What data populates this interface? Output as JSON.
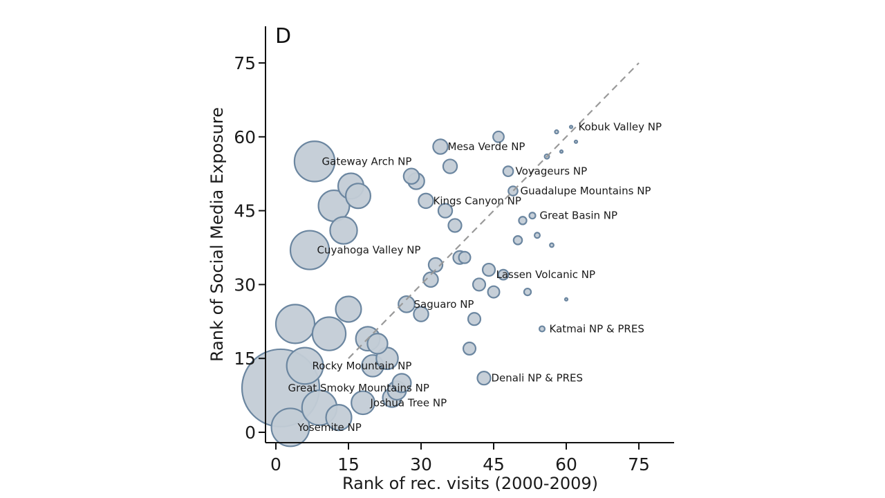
{
  "chart_data": {
    "type": "scatter",
    "panel_letter": "D",
    "xlabel": "Rank of rec. visits (2000-2009)",
    "ylabel": "Rank of Social Media Exposure",
    "xlim": [
      -2,
      82
    ],
    "ylim": [
      -2,
      83
    ],
    "xticks": [
      0,
      15,
      30,
      45,
      60,
      75
    ],
    "yticks": [
      0,
      15,
      30,
      45,
      60,
      75
    ],
    "grid": false,
    "reference_line": {
      "style": "dashed",
      "from": [
        15,
        15
      ],
      "to": [
        75,
        75
      ],
      "color": "#999999"
    },
    "colors": {
      "bubble_fill": "#c3ccd6",
      "bubble_stroke": "#6b86a0",
      "axis": "#111111"
    },
    "series": [
      {
        "points": [
          {
            "x": 1,
            "y": 9,
            "size": 1.0
          },
          {
            "x": 3,
            "y": 1,
            "size": 0.49
          },
          {
            "x": 4,
            "y": 22,
            "size": 0.5
          },
          {
            "x": 6,
            "y": 13.5,
            "size": 0.47
          },
          {
            "x": 7,
            "y": 37,
            "size": 0.5
          },
          {
            "x": 8,
            "y": 55,
            "size": 0.52
          },
          {
            "x": 9,
            "y": 5,
            "size": 0.45
          },
          {
            "x": 11,
            "y": 20,
            "size": 0.43
          },
          {
            "x": 12,
            "y": 46,
            "size": 0.4
          },
          {
            "x": 13,
            "y": 3,
            "size": 0.33
          },
          {
            "x": 14,
            "y": 41,
            "size": 0.35
          },
          {
            "x": 15.5,
            "y": 50,
            "size": 0.33
          },
          {
            "x": 15,
            "y": 25,
            "size": 0.33
          },
          {
            "x": 17,
            "y": 48,
            "size": 0.32
          },
          {
            "x": 18,
            "y": 6,
            "size": 0.3
          },
          {
            "x": 19,
            "y": 19,
            "size": 0.31
          },
          {
            "x": 20,
            "y": 13.5,
            "size": 0.28
          },
          {
            "x": 21,
            "y": 18,
            "size": 0.26
          },
          {
            "x": 23,
            "y": 15,
            "size": 0.28
          },
          {
            "x": 24,
            "y": 7,
            "size": 0.24
          },
          {
            "x": 25,
            "y": 8.5,
            "size": 0.24
          },
          {
            "x": 26,
            "y": 10,
            "size": 0.24
          },
          {
            "x": 27,
            "y": 26,
            "size": 0.21
          },
          {
            "x": 28,
            "y": 52,
            "size": 0.2
          },
          {
            "x": 29,
            "y": 51,
            "size": 0.21
          },
          {
            "x": 30,
            "y": 24,
            "size": 0.19
          },
          {
            "x": 31,
            "y": 47,
            "size": 0.19
          },
          {
            "x": 32,
            "y": 31,
            "size": 0.19
          },
          {
            "x": 33,
            "y": 34,
            "size": 0.18
          },
          {
            "x": 34,
            "y": 58,
            "size": 0.19
          },
          {
            "x": 35,
            "y": 45,
            "size": 0.18
          },
          {
            "x": 36,
            "y": 54,
            "size": 0.18
          },
          {
            "x": 37,
            "y": 42,
            "size": 0.17
          },
          {
            "x": 38,
            "y": 35.5,
            "size": 0.17
          },
          {
            "x": 39,
            "y": 35.5,
            "size": 0.15
          },
          {
            "x": 40,
            "y": 17,
            "size": 0.16
          },
          {
            "x": 41,
            "y": 23,
            "size": 0.16
          },
          {
            "x": 42,
            "y": 30,
            "size": 0.16
          },
          {
            "x": 43,
            "y": 11,
            "size": 0.17
          },
          {
            "x": 44,
            "y": 33,
            "size": 0.16
          },
          {
            "x": 45,
            "y": 28.5,
            "size": 0.15
          },
          {
            "x": 46,
            "y": 60,
            "size": 0.14
          },
          {
            "x": 47,
            "y": 32,
            "size": 0.13
          },
          {
            "x": 48,
            "y": 53,
            "size": 0.13
          },
          {
            "x": 49,
            "y": 49,
            "size": 0.12
          },
          {
            "x": 50,
            "y": 39,
            "size": 0.11
          },
          {
            "x": 51,
            "y": 43,
            "size": 0.1
          },
          {
            "x": 52,
            "y": 28.5,
            "size": 0.09
          },
          {
            "x": 53,
            "y": 44,
            "size": 0.08
          },
          {
            "x": 54,
            "y": 40,
            "size": 0.07
          },
          {
            "x": 55,
            "y": 21,
            "size": 0.07
          },
          {
            "x": 56,
            "y": 56,
            "size": 0.06
          },
          {
            "x": 57,
            "y": 38,
            "size": 0.05
          },
          {
            "x": 58,
            "y": 61,
            "size": 0.045
          },
          {
            "x": 59,
            "y": 57,
            "size": 0.035
          },
          {
            "x": 60,
            "y": 27,
            "size": 0.03
          },
          {
            "x": 61,
            "y": 62,
            "size": 0.025
          },
          {
            "x": 62,
            "y": 59,
            "size": 0.025
          }
        ]
      }
    ],
    "annotations": [
      {
        "text": "Kobuk Valley NP",
        "x": 62.5,
        "y": 62
      },
      {
        "text": "Mesa Verde NP",
        "x": 35.5,
        "y": 58
      },
      {
        "text": "Gateway Arch NP",
        "x": 9.5,
        "y": 55
      },
      {
        "text": "Voyageurs NP",
        "x": 49.5,
        "y": 53
      },
      {
        "text": "Guadalupe Mountains NP",
        "x": 50.5,
        "y": 49
      },
      {
        "text": "Kings Canyon NP",
        "x": 32.5,
        "y": 47
      },
      {
        "text": "Great Basin NP",
        "x": 54.5,
        "y": 44
      },
      {
        "text": "Cuyahoga Valley NP",
        "x": 8.5,
        "y": 37
      },
      {
        "text": "Lassen Volcanic NP",
        "x": 45.5,
        "y": 32
      },
      {
        "text": "Saguaro NP",
        "x": 28.5,
        "y": 26
      },
      {
        "text": "Katmai NP & PRES",
        "x": 56.5,
        "y": 21
      },
      {
        "text": "Rocky Mountain NP",
        "x": 7.5,
        "y": 13.5
      },
      {
        "text": "Denali NP & PRES",
        "x": 44.5,
        "y": 11
      },
      {
        "text": "Great Smoky Mountains NP",
        "x": 2.5,
        "y": 9
      },
      {
        "text": "Joshua Tree NP",
        "x": 19.5,
        "y": 6
      },
      {
        "text": "Yosemite NP",
        "x": 4.5,
        "y": 1
      }
    ]
  }
}
